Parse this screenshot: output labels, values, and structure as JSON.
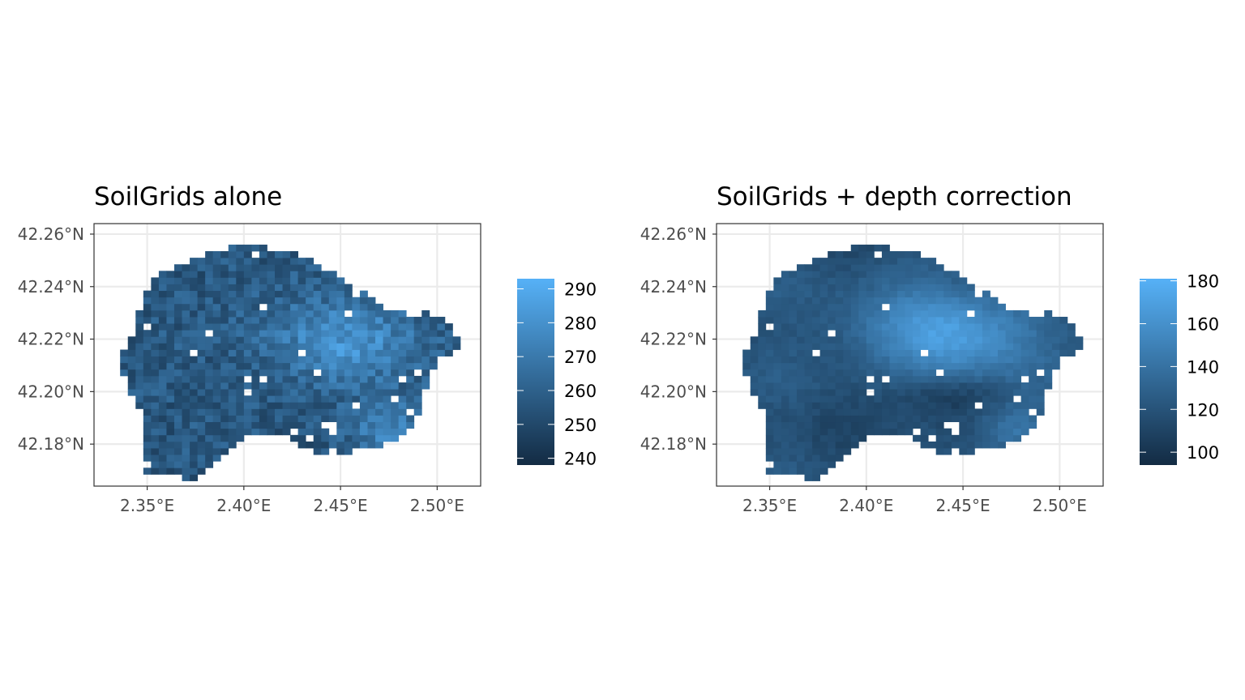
{
  "chart_data": [
    {
      "type": "heatmap",
      "title": "SoilGrids alone",
      "xlabel": "",
      "ylabel": "",
      "xlim": [
        2.3225,
        2.5225
      ],
      "ylim": [
        42.164,
        42.264
      ],
      "x_ticks": [
        {
          "value": 2.35,
          "label": "2.35°E"
        },
        {
          "value": 2.4,
          "label": "2.40°E"
        },
        {
          "value": 2.45,
          "label": "2.45°E"
        },
        {
          "value": 2.5,
          "label": "2.50°E"
        }
      ],
      "y_ticks": [
        {
          "value": 42.18,
          "label": "42.18°N"
        },
        {
          "value": 42.2,
          "label": "42.20°N"
        },
        {
          "value": 42.22,
          "label": "42.22°N"
        },
        {
          "value": 42.24,
          "label": "42.24°N"
        },
        {
          "value": 42.26,
          "label": "42.26°N"
        }
      ],
      "grid": true,
      "colorbar": {
        "min": 238,
        "max": 293,
        "ticks": [
          240,
          250,
          260,
          270,
          280,
          290
        ],
        "low_color": "#132B43",
        "high_color": "#56B1F7"
      }
    },
    {
      "type": "heatmap",
      "title": "SoilGrids + depth correction",
      "xlabel": "",
      "ylabel": "",
      "xlim": [
        2.3225,
        2.5225
      ],
      "ylim": [
        42.164,
        42.264
      ],
      "x_ticks": [
        {
          "value": 2.35,
          "label": "2.35°E"
        },
        {
          "value": 2.4,
          "label": "2.40°E"
        },
        {
          "value": 2.45,
          "label": "2.45°E"
        },
        {
          "value": 2.5,
          "label": "2.50°E"
        }
      ],
      "y_ticks": [
        {
          "value": 42.18,
          "label": "42.18°N"
        },
        {
          "value": 42.2,
          "label": "42.20°N"
        },
        {
          "value": 42.22,
          "label": "42.22°N"
        },
        {
          "value": 42.24,
          "label": "42.24°N"
        },
        {
          "value": 42.26,
          "label": "42.26°N"
        }
      ],
      "grid": true,
      "colorbar": {
        "min": 94,
        "max": 181,
        "ticks": [
          100,
          120,
          140,
          160,
          180
        ],
        "low_color": "#132B43",
        "high_color": "#56B1F7"
      }
    }
  ],
  "raster": {
    "x_range": [
      2.332,
      2.514
    ],
    "y_range": [
      42.166,
      42.256
    ],
    "boundary": [
      [
        2.334,
        42.213
      ],
      [
        2.34,
        42.218
      ],
      [
        2.345,
        42.223
      ],
      [
        2.345,
        42.233
      ],
      [
        2.35,
        42.24
      ],
      [
        2.36,
        42.246
      ],
      [
        2.372,
        42.25
      ],
      [
        2.386,
        42.254
      ],
      [
        2.398,
        42.256
      ],
      [
        2.42,
        42.254
      ],
      [
        2.435,
        42.25
      ],
      [
        2.448,
        42.244
      ],
      [
        2.462,
        42.238
      ],
      [
        2.474,
        42.232
      ],
      [
        2.487,
        42.229
      ],
      [
        2.496,
        42.23
      ],
      [
        2.505,
        42.226
      ],
      [
        2.51,
        42.22
      ],
      [
        2.514,
        42.217
      ],
      [
        2.502,
        42.213
      ],
      [
        2.496,
        42.207
      ],
      [
        2.493,
        42.198
      ],
      [
        2.488,
        42.186
      ],
      [
        2.478,
        42.182
      ],
      [
        2.47,
        42.178
      ],
      [
        2.45,
        42.177
      ],
      [
        2.44,
        42.175
      ],
      [
        2.43,
        42.179
      ],
      [
        2.418,
        42.184
      ],
      [
        2.4,
        42.183
      ],
      [
        2.385,
        42.173
      ],
      [
        2.376,
        42.166
      ],
      [
        2.36,
        42.168
      ],
      [
        2.35,
        42.169
      ],
      [
        2.348,
        42.175
      ],
      [
        2.35,
        42.19
      ],
      [
        2.343,
        42.198
      ],
      [
        2.338,
        42.205
      ],
      [
        2.334,
        42.209
      ]
    ]
  }
}
